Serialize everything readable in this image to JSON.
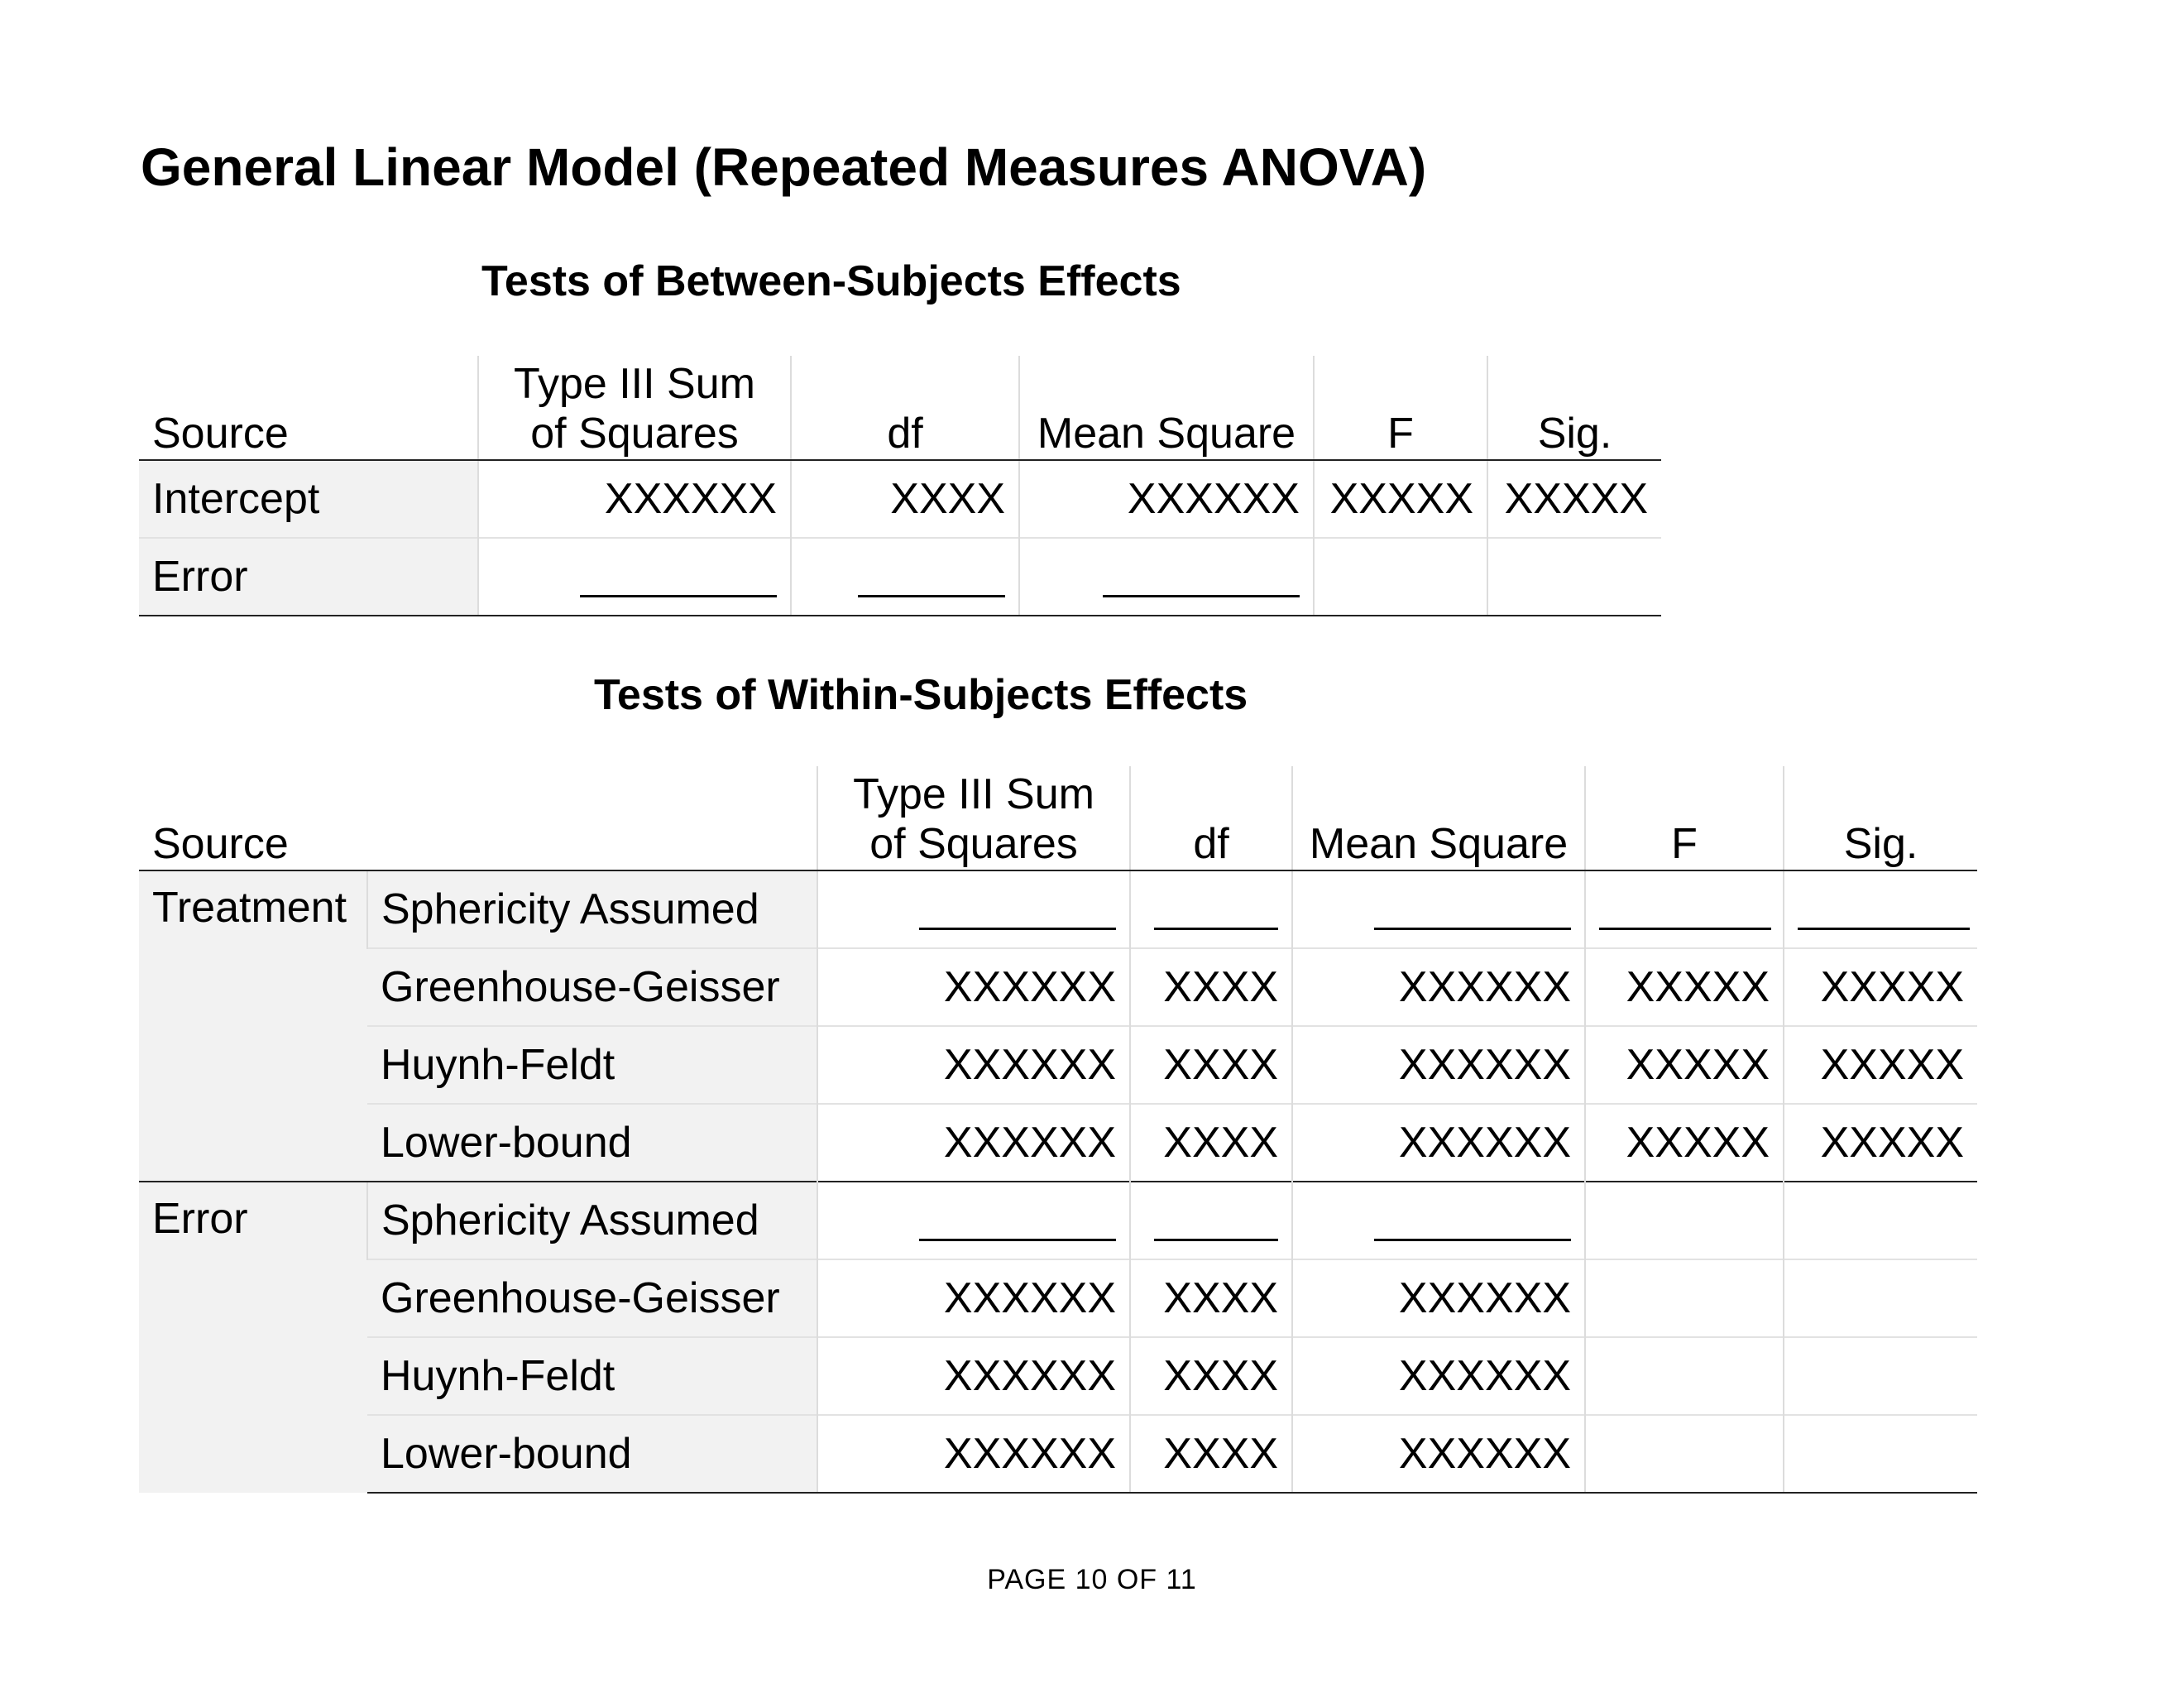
{
  "title": "General Linear Model (Repeated Measures ANOVA)",
  "between": {
    "title": "Tests of Between-Subjects Effects",
    "headers": {
      "source": "Source",
      "ss_line1": "Type III Sum",
      "ss_line2": "of Squares",
      "df": "df",
      "ms": "Mean Square",
      "f": "F",
      "sig": "Sig."
    },
    "rows": [
      {
        "source": "Intercept",
        "ss": "XXXXXX",
        "df": "XXXX",
        "ms": "XXXXXX",
        "f": "XXXXX",
        "sig": "XXXXX"
      },
      {
        "source": "Error",
        "ss": "",
        "df": "",
        "ms": "",
        "f": "",
        "sig": ""
      }
    ]
  },
  "within": {
    "title": "Tests of Within-Subjects Effects",
    "headers": {
      "source": "Source",
      "ss_line1": "Type III Sum",
      "ss_line2": "of Squares",
      "df": "df",
      "ms": "Mean Square",
      "f": "F",
      "sig": "Sig."
    },
    "groups": [
      {
        "name": "Treatment",
        "rows": [
          {
            "correction": "Sphericity Assumed",
            "ss": "",
            "df": "",
            "ms": "",
            "f": "",
            "sig": ""
          },
          {
            "correction": "Greenhouse-Geisser",
            "ss": "XXXXXX",
            "df": "XXXX",
            "ms": "XXXXXX",
            "f": "XXXXX",
            "sig": "XXXXX"
          },
          {
            "correction": "Huynh-Feldt",
            "ss": "XXXXXX",
            "df": "XXXX",
            "ms": "XXXXXX",
            "f": "XXXXX",
            "sig": "XXXXX"
          },
          {
            "correction": "Lower-bound",
            "ss": "XXXXXX",
            "df": "XXXX",
            "ms": "XXXXXX",
            "f": "XXXXX",
            "sig": "XXXXX"
          }
        ]
      },
      {
        "name": "Error",
        "rows": [
          {
            "correction": "Sphericity Assumed",
            "ss": "",
            "df": "",
            "ms": "",
            "f": "",
            "sig": ""
          },
          {
            "correction": "Greenhouse-Geisser",
            "ss": "XXXXXX",
            "df": "XXXX",
            "ms": "XXXXXX",
            "f": "",
            "sig": ""
          },
          {
            "correction": "Huynh-Feldt",
            "ss": "XXXXXX",
            "df": "XXXX",
            "ms": "XXXXXX",
            "f": "",
            "sig": ""
          },
          {
            "correction": "Lower-bound",
            "ss": "XXXXXX",
            "df": "XXXX",
            "ms": "XXXXXX",
            "f": "",
            "sig": ""
          }
        ]
      }
    ]
  },
  "footer": "PAGE 10 OF 11"
}
